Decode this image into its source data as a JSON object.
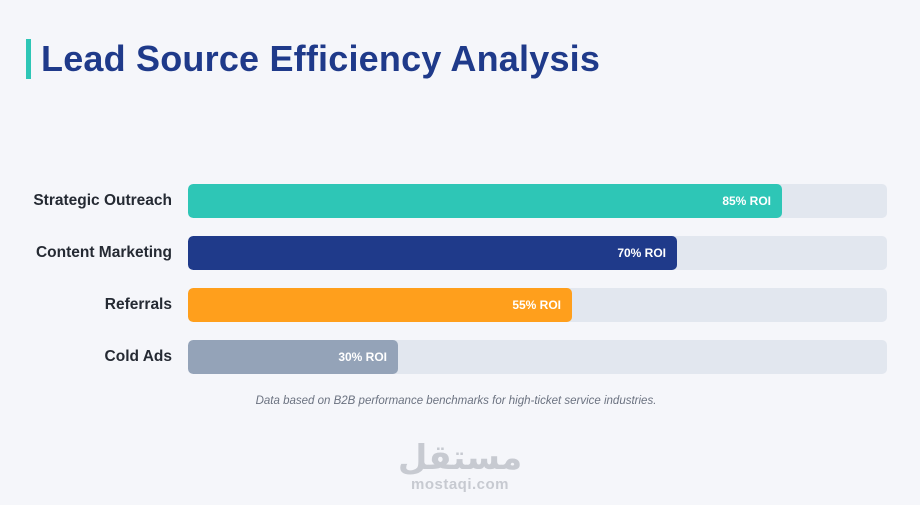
{
  "header": {
    "title": "Lead Source Efficiency Analysis"
  },
  "chart_data": {
    "type": "bar",
    "orientation": "horizontal",
    "title": "Lead Source Efficiency Analysis",
    "categories": [
      "Strategic Outreach",
      "Content Marketing",
      "Referrals",
      "Cold Ads"
    ],
    "values": [
      85,
      70,
      55,
      30
    ],
    "value_labels": [
      "85% ROI",
      "70% ROI",
      "55% ROI",
      "30% ROI"
    ],
    "colors": [
      "#2ec6b6",
      "#1f3a8a",
      "#ff9f1c",
      "#94a3b8"
    ],
    "unit": "% ROI",
    "xlim": [
      0,
      100
    ],
    "grid": false,
    "legend": "none",
    "footnote": "Data based on B2B performance benchmarks for high-ticket service industries."
  },
  "watermark": {
    "arabic": "مستقل",
    "latin": "mostaqi.com"
  }
}
